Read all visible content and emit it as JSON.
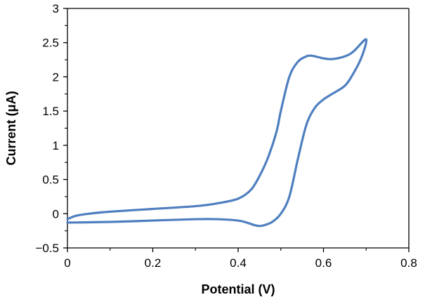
{
  "chart_data": {
    "type": "line",
    "title": "",
    "xlabel": "Potential (V)",
    "ylabel": "Current (μA)",
    "xlim": [
      0,
      0.8
    ],
    "ylim": [
      -0.5,
      3
    ],
    "x_ticks": [
      0,
      0.2,
      0.4,
      0.6,
      0.8
    ],
    "x_tick_labels": [
      "0",
      "0.2",
      "0.4",
      "0.6",
      "0.8"
    ],
    "y_ticks": [
      -0.5,
      0,
      0.5,
      1,
      1.5,
      2,
      2.5,
      3
    ],
    "y_tick_labels": [
      "−0.5",
      "0",
      "0.5",
      "1",
      "1.5",
      "2",
      "2.5",
      "3"
    ],
    "grid": false,
    "legend": "none",
    "series": [
      {
        "color": "#4f7fc0",
        "x": [
          0.0,
          0.02,
          0.05,
          0.1,
          0.2,
          0.3,
          0.35,
          0.4,
          0.43,
          0.45,
          0.47,
          0.49,
          0.5,
          0.52,
          0.54,
          0.56,
          0.57,
          0.58,
          0.6,
          0.62,
          0.65,
          0.67,
          0.7,
          0.69,
          0.67,
          0.65,
          0.62,
          0.6,
          0.58,
          0.56,
          0.54,
          0.52,
          0.5,
          0.48,
          0.46,
          0.45,
          0.44,
          0.42,
          0.4,
          0.35,
          0.3,
          0.2,
          0.1,
          0.0
        ],
        "y": [
          -0.08,
          -0.03,
          0.0,
          0.03,
          0.07,
          0.11,
          0.15,
          0.22,
          0.35,
          0.55,
          0.82,
          1.2,
          1.5,
          2.0,
          2.22,
          2.3,
          2.31,
          2.3,
          2.27,
          2.26,
          2.3,
          2.37,
          2.55,
          2.3,
          2.05,
          1.87,
          1.75,
          1.67,
          1.55,
          1.3,
          0.8,
          0.25,
          0.0,
          -0.12,
          -0.17,
          -0.18,
          -0.17,
          -0.13,
          -0.1,
          -0.08,
          -0.08,
          -0.1,
          -0.12,
          -0.13
        ]
      }
    ]
  }
}
